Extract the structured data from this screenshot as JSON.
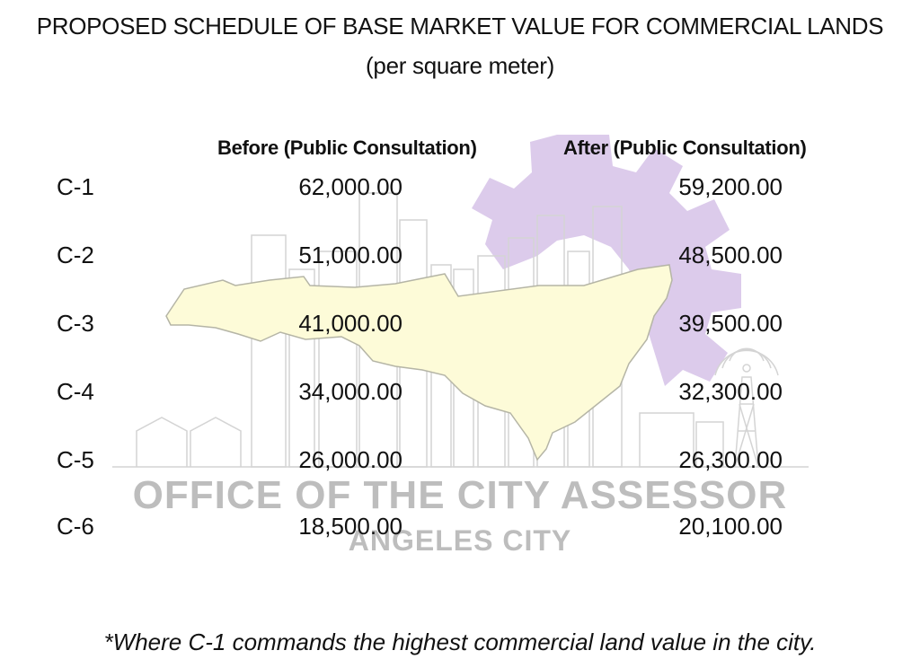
{
  "header": {
    "title": "PROPOSED SCHEDULE OF BASE MARKET VALUE FOR COMMERCIAL LANDS",
    "subtitle": "(per square meter)"
  },
  "table": {
    "columns": {
      "before": "Before (Public Consultation)",
      "after": "After (Public Consultation)"
    },
    "rows": [
      {
        "code": "C-1",
        "before": "62,000.00",
        "after": "59,200.00"
      },
      {
        "code": "C-2",
        "before": "51,000.00",
        "after": "48,500.00"
      },
      {
        "code": "C-3",
        "before": "41,000.00",
        "after": "39,500.00"
      },
      {
        "code": "C-4",
        "before": "34,000.00",
        "after": "32,300.00"
      },
      {
        "code": "C-5",
        "before": "26,000.00",
        "after": "26,300.00"
      },
      {
        "code": "C-6",
        "before": "18,500.00",
        "after": "20,100.00"
      }
    ]
  },
  "watermark": {
    "office": "OFFICE OF THE CITY ASSESSOR",
    "city": "ANGELES CITY"
  },
  "footnote": "*Where C-1 commands the highest commercial land value in the city.",
  "colors": {
    "map_fill": "#fdfbd8",
    "map_stroke": "#b5b5a6",
    "gear": "#dccbeb",
    "skyline": "#d4d4d4",
    "watermark_text": "#bdbdbd"
  },
  "icons": {
    "background_map": "city-map-outline",
    "background_gear": "gear-icon",
    "background_skyline": "skyline-outline",
    "background_tower": "radio-tower-icon"
  }
}
